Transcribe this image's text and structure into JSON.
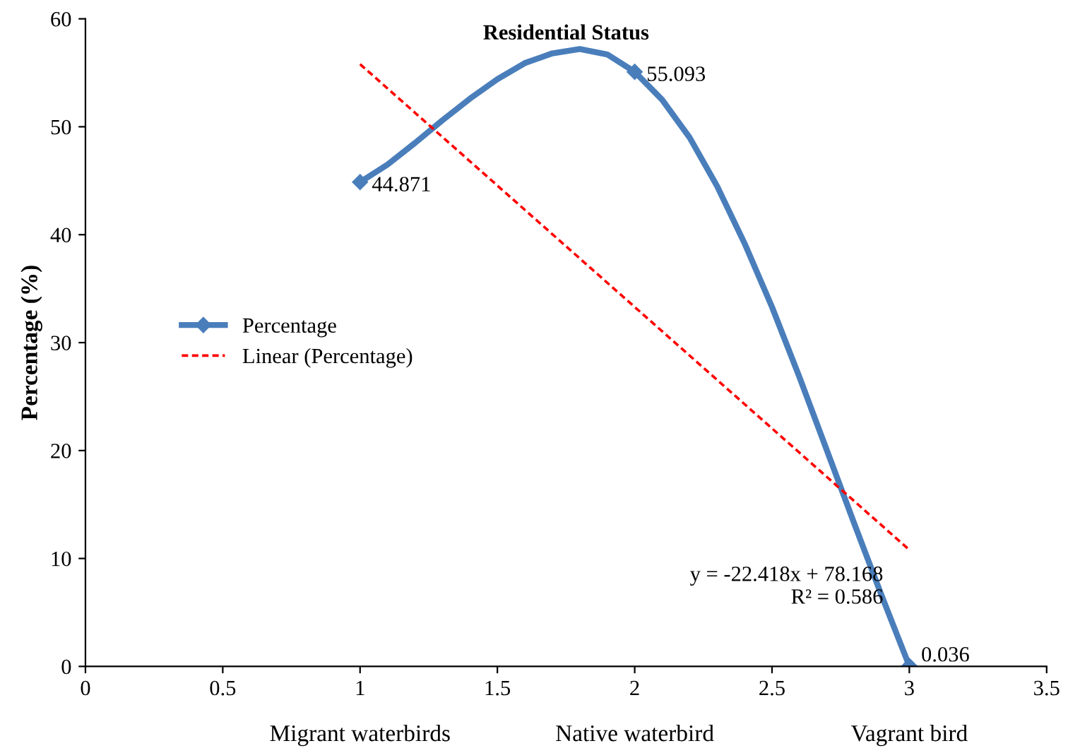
{
  "chart_data": {
    "type": "line",
    "title": "Residential Status",
    "ylabel": "Percentage (%)",
    "xlim": [
      0,
      3.5
    ],
    "xticks": [
      0,
      0.5,
      1,
      1.5,
      2,
      2.5,
      3,
      3.5
    ],
    "ylim": [
      0,
      60
    ],
    "yticks": [
      0,
      10,
      20,
      30,
      40,
      50,
      60
    ],
    "grid": false,
    "legend": "center left",
    "series": [
      {
        "name": "Percentage",
        "color": "#4a7ebb",
        "x": [
          1,
          1.1,
          1.2,
          1.3,
          1.4,
          1.5,
          1.6,
          1.7,
          1.8,
          1.9,
          2,
          2.1,
          2.2,
          2.3,
          2.4,
          2.5,
          2.6,
          2.7,
          2.8,
          2.9,
          3
        ],
        "values": [
          44.871,
          46.5,
          48.5,
          50.6,
          52.6,
          54.4,
          55.9,
          56.8,
          57.2,
          56.7,
          55.093,
          52.5,
          49,
          44.5,
          39.2,
          33.3,
          26.8,
          20,
          13.2,
          6.5,
          0.036
        ],
        "marker": "none",
        "line_style": "solid"
      },
      {
        "type": "scatter",
        "color": "#4a7ebb",
        "x": [
          1,
          2,
          3
        ],
        "values": [
          44.871,
          55.093,
          0.036
        ],
        "marker": "diamond",
        "data_labels": true
      },
      {
        "name": "Linear (Percentage)",
        "type": "line",
        "color": "#ff0000",
        "x": [
          1,
          3
        ],
        "values": [
          55.8,
          10.8
        ],
        "marker": "none",
        "line_style": "dashed"
      }
    ],
    "annotations": [
      "Migrant waterbirds",
      "Native waterbird",
      "Vagrant bird",
      "y = -22.418x + 78.168\nR² = 0.586"
    ]
  }
}
